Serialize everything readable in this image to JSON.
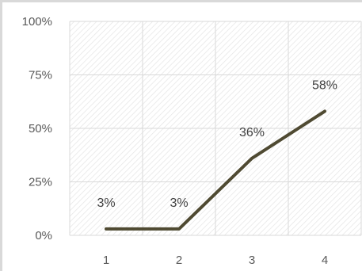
{
  "chart_data": {
    "type": "line",
    "title": "",
    "xlabel": "",
    "ylabel": "",
    "x": [
      "1",
      "2",
      "3",
      "4"
    ],
    "series": [
      {
        "values": [
          3,
          3,
          36,
          58
        ],
        "labels": [
          "3%",
          "3%",
          "36%",
          "58%"
        ]
      }
    ],
    "ylim": [
      0,
      100
    ],
    "yticks": [
      "0%",
      "25%",
      "50%",
      "75%",
      "100%"
    ],
    "grid": true,
    "plot_area_pattern": "diagonal-hatch",
    "colors": {
      "line": "#4f4a32",
      "grid": "#d9d9d9",
      "hatch": "#e4e4e4",
      "text": "#595959"
    }
  }
}
